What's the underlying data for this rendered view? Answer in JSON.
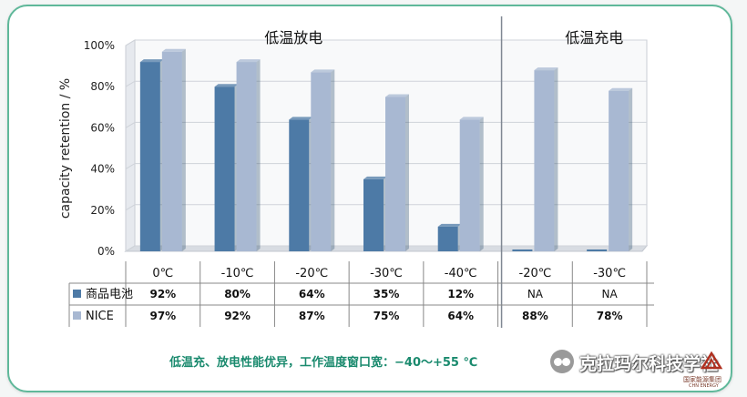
{
  "colors": {
    "border": "#5fb89a",
    "commercial": "#4d7aa6",
    "nice": "#a8b8d2",
    "footer_text": "#1a8a6e"
  },
  "chart_data": {
    "type": "bar",
    "ylabel": "capacity retention / %",
    "ylim": [
      0,
      100
    ],
    "yticks": [
      "0%",
      "20%",
      "40%",
      "60%",
      "80%",
      "100%"
    ],
    "grid": true,
    "groups": [
      {
        "title": "低温放电",
        "categories": [
          "0℃",
          "-10℃",
          "-20℃",
          "-30℃",
          "-40℃"
        ]
      },
      {
        "title": "低温充电",
        "categories": [
          "-20℃",
          "-30℃"
        ]
      }
    ],
    "categories": [
      "0℃",
      "-10℃",
      "-20℃",
      "-30℃",
      "-40℃",
      "-20℃",
      "-30℃"
    ],
    "series": [
      {
        "name": "商品电池",
        "color": "#4d7aa6",
        "values": [
          92,
          80,
          64,
          35,
          12,
          0,
          0
        ],
        "labels": [
          "92%",
          "80%",
          "64%",
          "35%",
          "12%",
          "NA",
          "NA"
        ]
      },
      {
        "name": "NICE",
        "color": "#a8b8d2",
        "values": [
          97,
          92,
          87,
          75,
          64,
          88,
          78
        ],
        "labels": [
          "97%",
          "92%",
          "87%",
          "75%",
          "64%",
          "88%",
          "78%"
        ]
      }
    ]
  },
  "footer": {
    "text": "低温充、放电性能优异，工作温度窗口宽：−40～+55 ℃"
  },
  "watermark": {
    "text": "克拉玛尔科技学社",
    "group": "国家能源集团",
    "group_en": "CHN ENERGY",
    "icon": "wechat-icon"
  }
}
